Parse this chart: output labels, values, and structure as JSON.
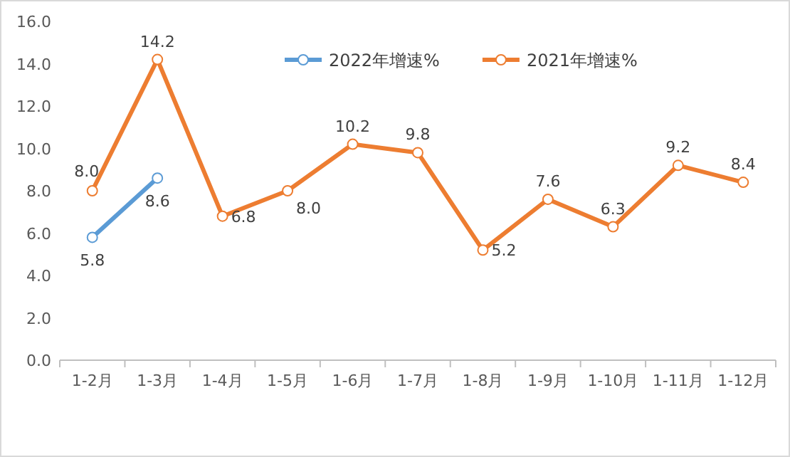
{
  "chart_data": {
    "type": "line",
    "categories": [
      "1-2月",
      "1-3月",
      "1-4月",
      "1-5月",
      "1-6月",
      "1-7月",
      "1-8月",
      "1-9月",
      "1-10月",
      "1-11月",
      "1-12月"
    ],
    "series": [
      {
        "name": "2022年增速%",
        "color": "#5b9bd5",
        "values": [
          5.8,
          8.6,
          null,
          null,
          null,
          null,
          null,
          null,
          null,
          null,
          null
        ],
        "value_labels": [
          "5.8",
          "8.6",
          null,
          null,
          null,
          null,
          null,
          null,
          null,
          null,
          null
        ]
      },
      {
        "name": "2021年增速%",
        "color": "#ed7d31",
        "values": [
          8.0,
          14.2,
          6.8,
          8.0,
          10.2,
          9.8,
          5.2,
          7.6,
          6.3,
          9.2,
          8.4
        ],
        "value_labels": [
          "8.0",
          "14.2",
          "6.8",
          "8.0",
          "10.2",
          "9.8",
          "5.2",
          "7.6",
          "6.3",
          "9.2",
          "8.4"
        ]
      }
    ],
    "ylim": [
      0,
      16
    ],
    "yticks": [
      {
        "value": 0,
        "label": "0.0"
      },
      {
        "value": 2,
        "label": "2.0"
      },
      {
        "value": 4,
        "label": "4.0"
      },
      {
        "value": 6,
        "label": "6.0"
      },
      {
        "value": 8,
        "label": "8.0"
      },
      {
        "value": 10,
        "label": "10.0"
      },
      {
        "value": 12,
        "label": "12.0"
      },
      {
        "value": 14,
        "label": "14.0"
      },
      {
        "value": 16,
        "label": "16.0"
      }
    ],
    "marker": "circle",
    "legend": "top",
    "grid": false
  }
}
